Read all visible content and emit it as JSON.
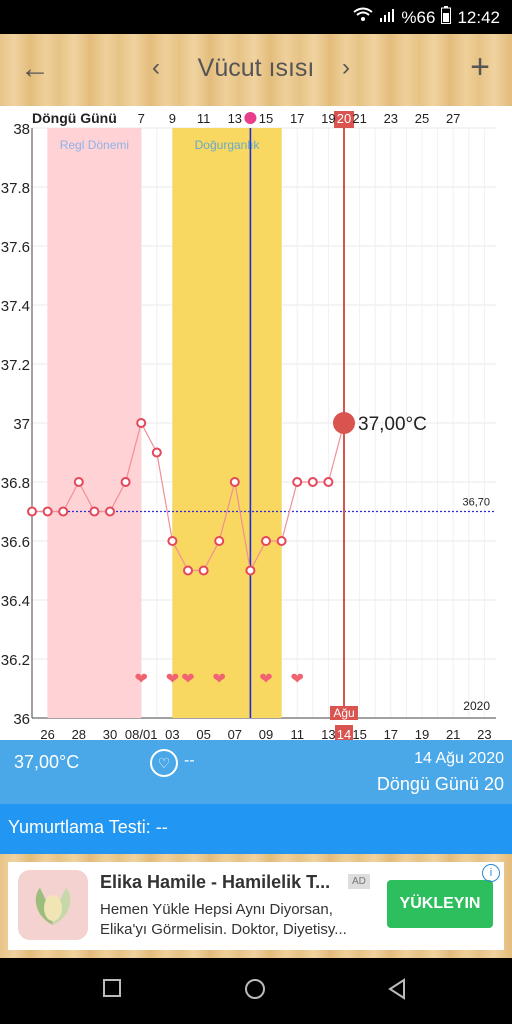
{
  "status_bar": {
    "battery": "%66",
    "time": "12:42",
    "icons": [
      "wifi-icon",
      "signal-icon",
      "battery-icon"
    ]
  },
  "app_bar": {
    "title": "Vücut ısısı",
    "back_icon": "arrow-left-icon",
    "add_icon": "plus-icon"
  },
  "chart_data": {
    "type": "line",
    "y_ticks": [
      "38",
      "37.8",
      "37.6",
      "37.4",
      "37.2",
      "37",
      "36.8",
      "36.6",
      "36.4",
      "36.2",
      "36"
    ],
    "ylim": [
      36,
      38
    ],
    "top_axis_title": "Döngü Günü",
    "top_ticks": [
      "7",
      "9",
      "11",
      "13",
      "15",
      "17",
      "19",
      "21",
      "23",
      "25",
      "27"
    ],
    "top_current": "20",
    "bottom_ticks": [
      "26",
      "28",
      "30",
      "08/01",
      "03",
      "05",
      "07",
      "09",
      "11",
      "13",
      "15",
      "17",
      "19",
      "21",
      "23"
    ],
    "bottom_month": "Ağu",
    "bottom_current": "14",
    "year": "2020",
    "regions": [
      {
        "label": "Regl Dönemi",
        "from": 1,
        "to": 7
      },
      {
        "label": "Doğurganlık",
        "from": 9,
        "to": 16
      }
    ],
    "coverline": {
      "value": 36.7,
      "label": "36,70"
    },
    "x": [
      0,
      1,
      2,
      3,
      4,
      5,
      6,
      7,
      8,
      9,
      10,
      11,
      12,
      13,
      14,
      15,
      16,
      17,
      18,
      19
    ],
    "values": [
      36.7,
      36.7,
      36.7,
      36.8,
      36.7,
      36.7,
      36.8,
      37.0,
      36.9,
      36.6,
      36.5,
      36.5,
      36.6,
      36.8,
      36.5,
      36.6,
      36.6,
      36.8,
      36.8,
      36.8
    ],
    "hearts": [
      7,
      9,
      10,
      12,
      15,
      17
    ],
    "ovulation_x": 14,
    "current": {
      "x": 20,
      "value": 37.0,
      "label": "37,00°C"
    }
  },
  "info_bar": {
    "temperature": "37,00°C",
    "heart_status": "--",
    "date": "14 Ağu 2020",
    "cycle_day": "Döngü Günü 20"
  },
  "ovulation_test": {
    "label": "Yumurtlama Testi: --"
  },
  "ad": {
    "title": "Elika Hamile - Hamilelik T...",
    "badge": "AD",
    "description": "Hemen Yükle Hepsi Aynı Diyorsan, Elika'yı Görmelisin. Doktor, Diyetisy...",
    "button": "YÜKLEYIN"
  },
  "nav": {
    "icons": [
      "recent-apps-icon",
      "home-icon",
      "back-triangle-icon"
    ]
  },
  "colors": {
    "period": "#ffd3d5",
    "fertile": "#f8d860",
    "line": "#f08f98",
    "ovulation": "#1e2bd8",
    "today": "#d9534f",
    "coverline": "#2b2bd6"
  }
}
